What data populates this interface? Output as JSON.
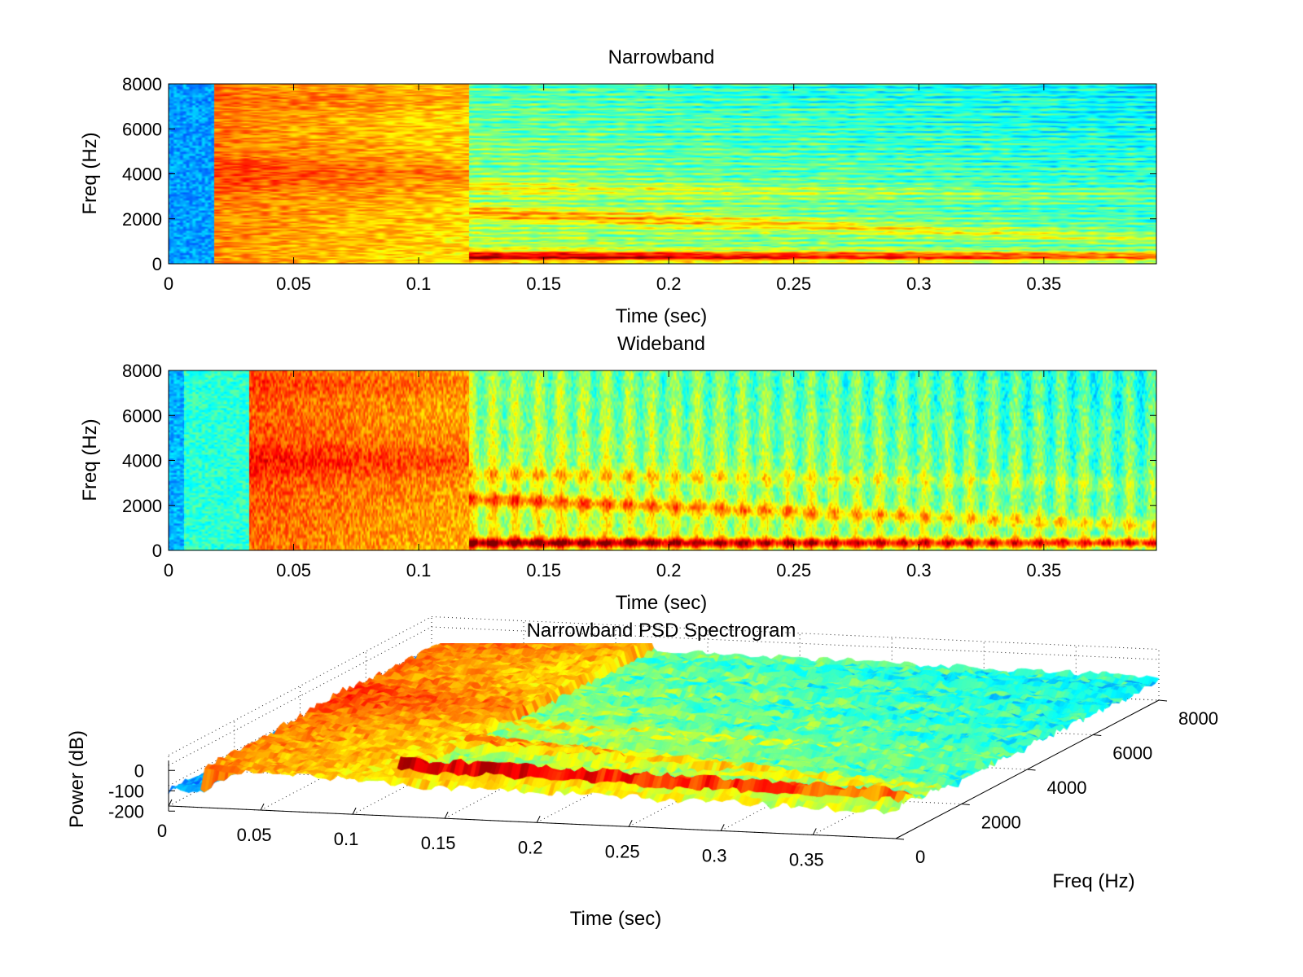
{
  "chart_data": [
    {
      "type": "heatmap",
      "title": "Narrowband",
      "xlabel": "Time (sec)",
      "ylabel": "Freq (Hz)",
      "xlim": [
        0,
        0.395
      ],
      "ylim": [
        0,
        8000
      ],
      "xticks": [
        0,
        0.05,
        0.1,
        0.15,
        0.2,
        0.25,
        0.3,
        0.35
      ],
      "xtick_labels": [
        "0",
        "0.05",
        "0.1",
        "0.15",
        "0.2",
        "0.25",
        "0.3",
        "0.35"
      ],
      "yticks": [
        0,
        2000,
        4000,
        6000,
        8000
      ],
      "ytick_labels": [
        "0",
        "2000",
        "4000",
        "6000",
        "8000"
      ],
      "colormap": "jet",
      "band": "narrow"
    },
    {
      "type": "heatmap",
      "title": "Wideband",
      "xlabel": "Time (sec)",
      "ylabel": "Freq (Hz)",
      "xlim": [
        0,
        0.395
      ],
      "ylim": [
        0,
        8000
      ],
      "xticks": [
        0,
        0.05,
        0.1,
        0.15,
        0.2,
        0.25,
        0.3,
        0.35
      ],
      "xtick_labels": [
        "0",
        "0.05",
        "0.1",
        "0.15",
        "0.2",
        "0.25",
        "0.3",
        "0.35"
      ],
      "yticks": [
        0,
        2000,
        4000,
        6000,
        8000
      ],
      "ytick_labels": [
        "0",
        "2000",
        "4000",
        "6000",
        "8000"
      ],
      "colormap": "jet",
      "band": "wide"
    },
    {
      "type": "surface",
      "title": "Narrowband PSD Spectrogram",
      "xlabel": "Time (sec)",
      "ylabel": "Freq (Hz)",
      "zlabel": "Power (dB)",
      "xlim": [
        0,
        0.395
      ],
      "ylim": [
        0,
        8000
      ],
      "zlim": [
        -250,
        50
      ],
      "xtick_labels": [
        "0",
        "0.05",
        "0.1",
        "0.15",
        "0.2",
        "0.25",
        "0.3",
        "0.35"
      ],
      "xticks": [
        0,
        0.05,
        0.1,
        0.15,
        0.2,
        0.25,
        0.3,
        0.35
      ],
      "ytick_labels": [
        "0",
        "2000",
        "4000",
        "6000",
        "8000"
      ],
      "yticks": [
        0,
        2000,
        4000,
        6000,
        8000
      ],
      "ztick_labels": [
        "0",
        "-100",
        "-200"
      ],
      "zticks": [
        0,
        -100,
        -200
      ],
      "colormap": "jet"
    }
  ],
  "colors": {
    "colormap_stops": [
      "#00008f",
      "#0000ff",
      "#00ffff",
      "#ffff00",
      "#ff0000",
      "#800000"
    ]
  }
}
